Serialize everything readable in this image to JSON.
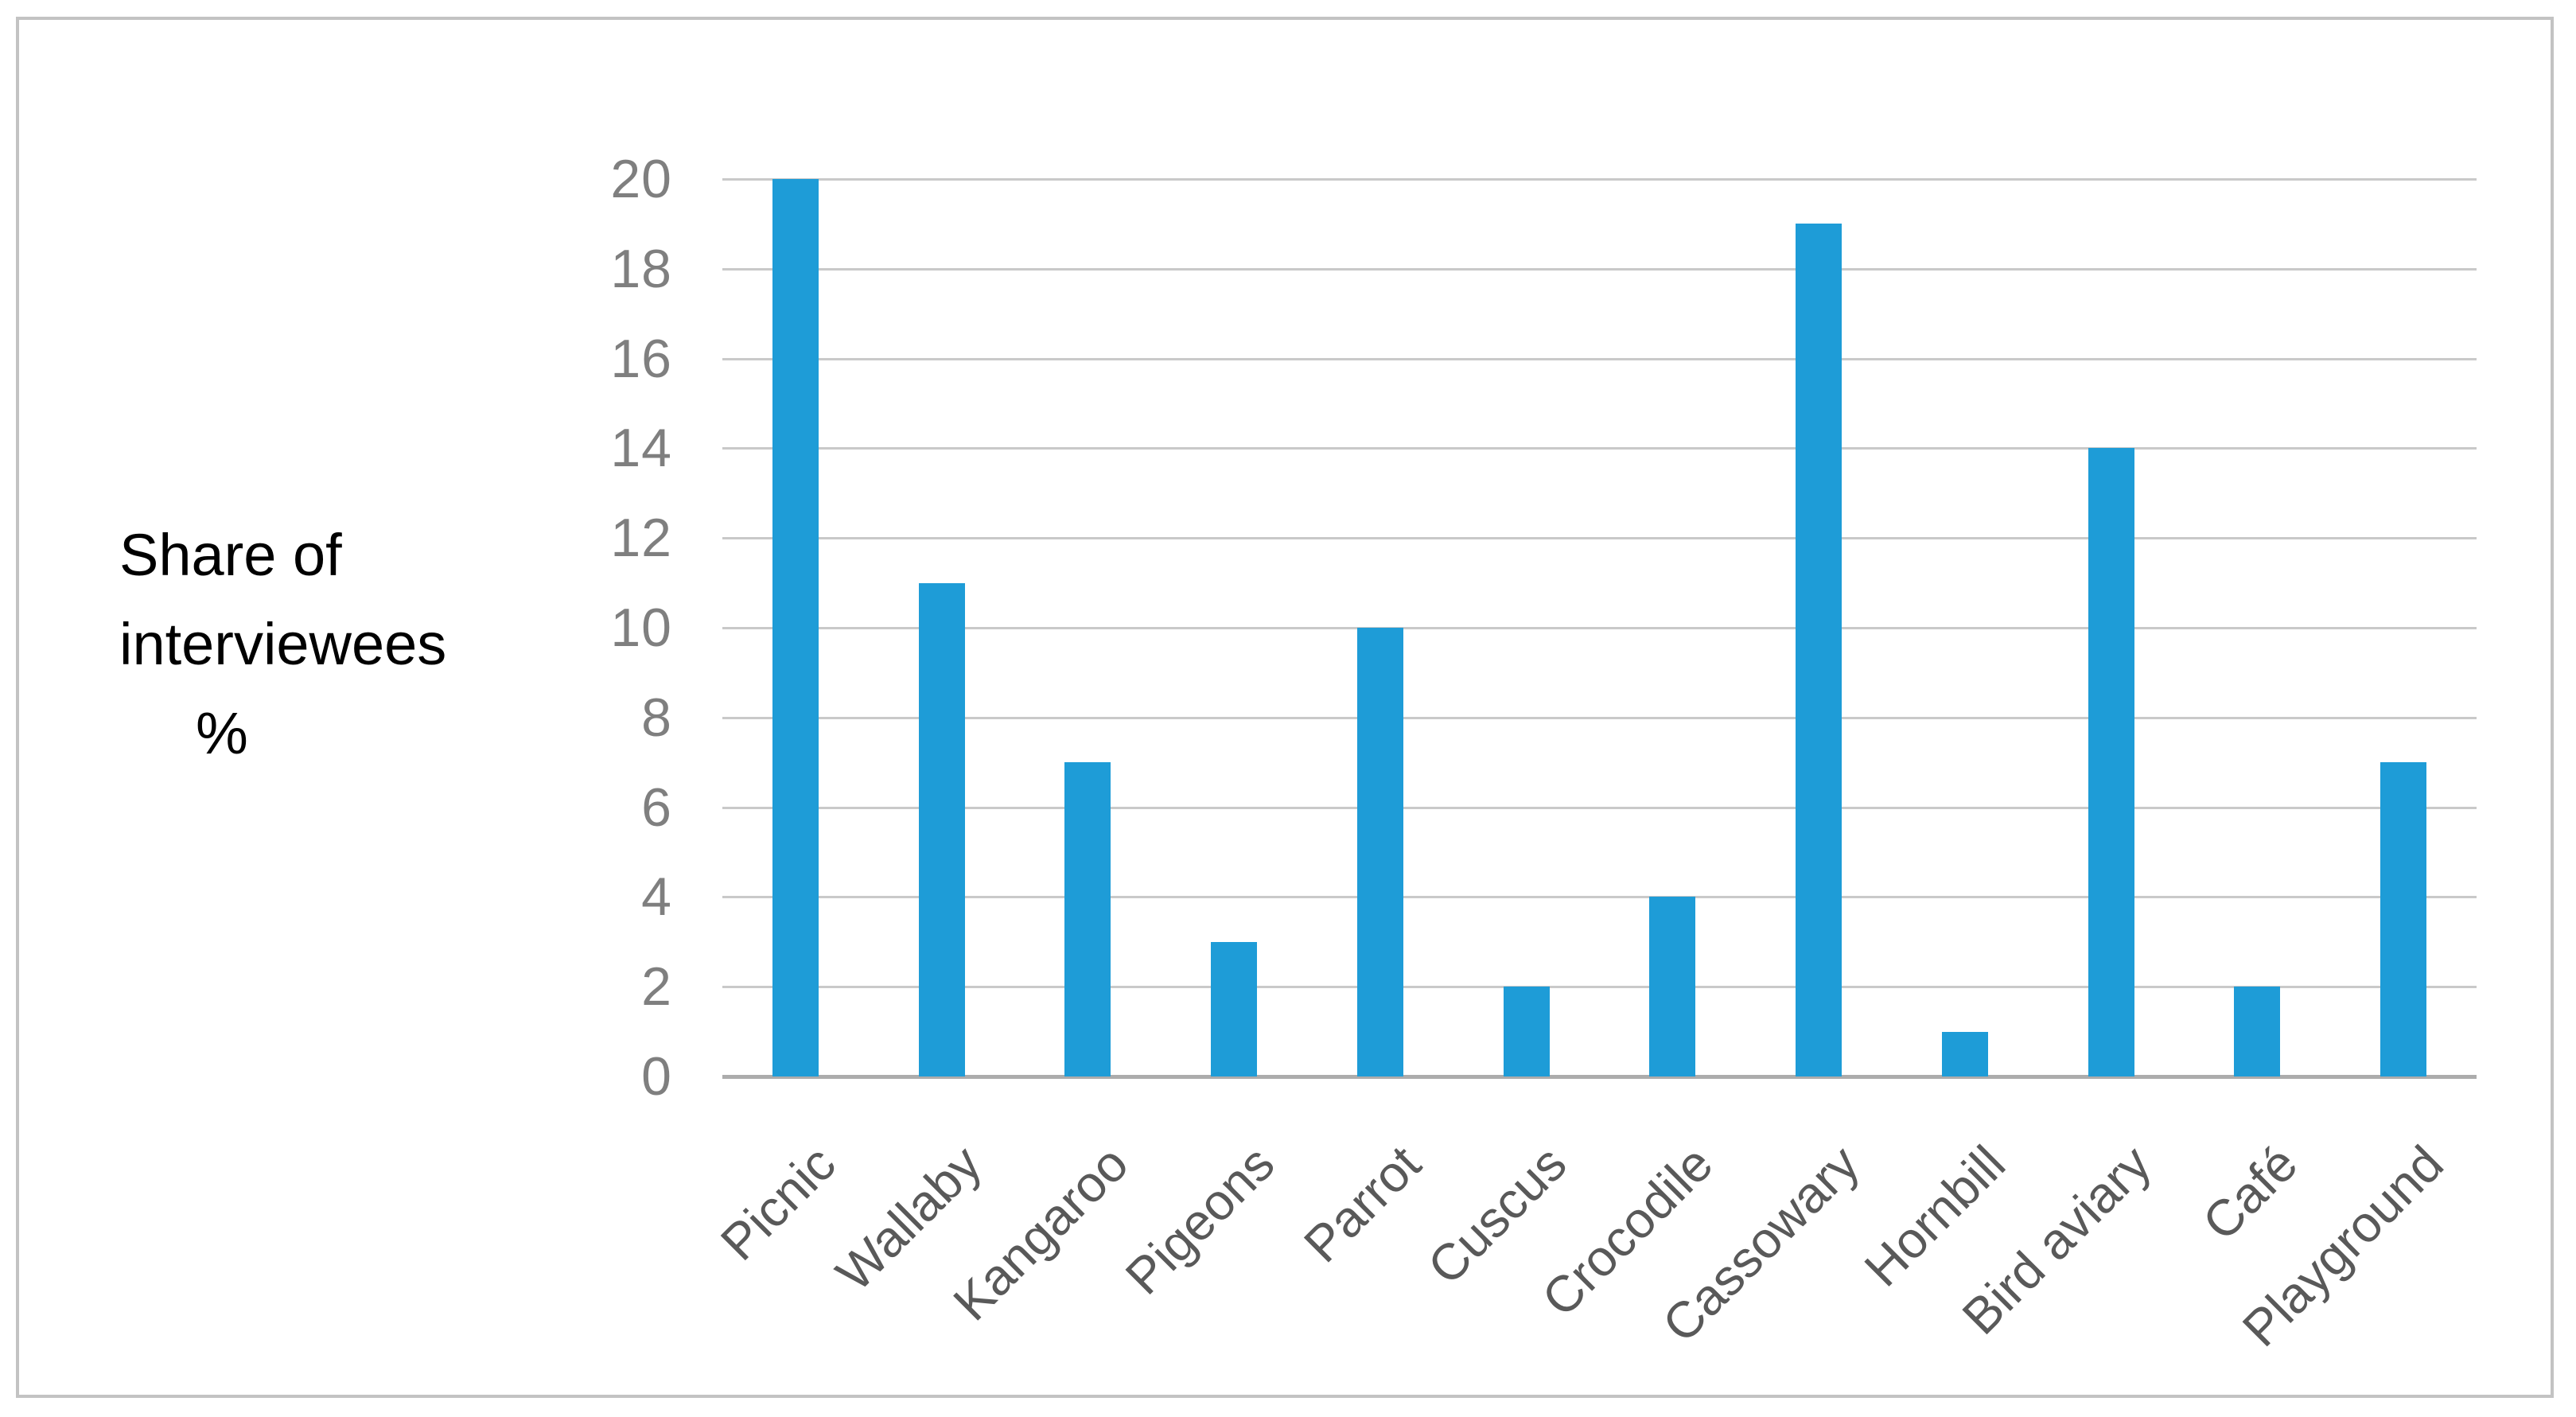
{
  "chart_data": {
    "type": "bar",
    "title": "",
    "ylabel_lines": [
      "Share of",
      "interviewees",
      "%"
    ],
    "categories": [
      "Picnic",
      "Wallaby",
      "Kangaroo",
      "Pigeons",
      "Parrot",
      "Cuscus",
      "Crocodile",
      "Cassowary",
      "Hornbill",
      "Bird aviary",
      "Café",
      "Playground"
    ],
    "values": [
      20,
      11,
      7,
      3,
      10,
      2,
      4,
      19,
      1,
      14,
      2,
      7
    ],
    "yticks": [
      0,
      2,
      4,
      6,
      8,
      10,
      12,
      14,
      16,
      18,
      20
    ],
    "ylim": [
      0,
      20
    ],
    "ytick_step": 2,
    "grid": true,
    "legend_position": "none",
    "colors": {
      "bar": "#1E9CD7",
      "tick_label": "#7F7F7F",
      "category_label": "#595959",
      "gridline": "#C9C9C9",
      "axis_line": "#ACACAC",
      "frame_border": "#C3C3C3",
      "ylabel_text": "#000000",
      "background": "#FFFFFF"
    }
  }
}
